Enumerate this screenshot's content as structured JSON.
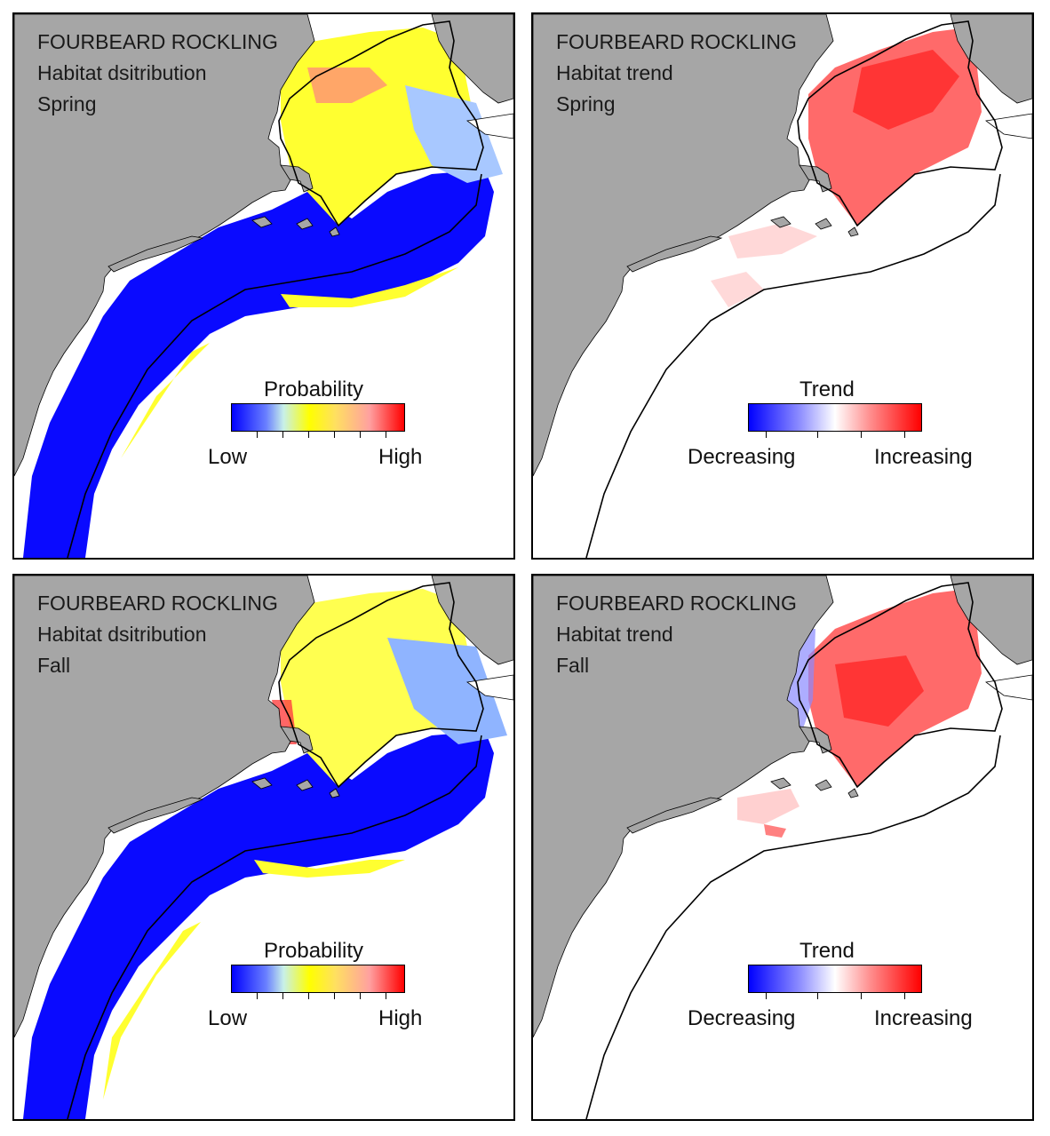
{
  "panels": [
    {
      "species": "FOURBEARD ROCKLING",
      "map_type": "Habitat dsitribution",
      "season": "Spring",
      "legend": {
        "title": "Probability",
        "low": "Low",
        "high": "High"
      }
    },
    {
      "species": "FOURBEARD ROCKLING",
      "map_type": "Habitat trend",
      "season": "Spring",
      "legend": {
        "title": "Trend",
        "low": "Decreasing",
        "high": "Increasing"
      }
    },
    {
      "species": "FOURBEARD ROCKLING",
      "map_type": "Habitat dsitribution",
      "season": "Fall",
      "legend": {
        "title": "Probability",
        "low": "Low",
        "high": "High"
      }
    },
    {
      "species": "FOURBEARD ROCKLING",
      "map_type": "Habitat trend",
      "season": "Fall",
      "legend": {
        "title": "Trend",
        "low": "Decreasing",
        "high": "Increasing"
      }
    }
  ],
  "colors": {
    "land": "#a6a6a6",
    "ocean": "#ffffff",
    "probability_scale": [
      "#0000ff",
      "#8aa6ff",
      "#c8f0e8",
      "#ffff00",
      "#ffe060",
      "#ffa0a0",
      "#ff0000"
    ],
    "trend_scale": [
      "#0000ff",
      "#9090ff",
      "#ffffff",
      "#ff9090",
      "#ff0000"
    ]
  }
}
